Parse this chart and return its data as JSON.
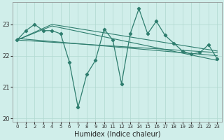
{
  "xlabel": "Humidex (Indice chaleur)",
  "bg_color": "#d0eeea",
  "grid_color": "#b0d8d0",
  "line_color": "#2e7d6e",
  "x_main": [
    0,
    1,
    2,
    3,
    4,
    5,
    6,
    7,
    8,
    9,
    10,
    11,
    12,
    13,
    14,
    15,
    16,
    17,
    18,
    19,
    20,
    21,
    22,
    23
  ],
  "y_main": [
    22.5,
    22.8,
    23.0,
    22.8,
    22.8,
    22.7,
    21.8,
    20.35,
    21.4,
    21.85,
    22.85,
    22.5,
    21.1,
    22.7,
    23.5,
    22.7,
    23.1,
    22.65,
    22.4,
    22.15,
    22.05,
    22.1,
    22.35,
    21.9
  ],
  "trend_lines": [
    {
      "x": [
        0,
        23
      ],
      "y": [
        22.5,
        22.1
      ]
    },
    {
      "x": [
        0,
        23
      ],
      "y": [
        22.55,
        22.0
      ]
    },
    {
      "x": [
        0,
        4,
        23
      ],
      "y": [
        22.5,
        23.0,
        22.15
      ]
    },
    {
      "x": [
        0,
        4,
        23
      ],
      "y": [
        22.5,
        22.95,
        21.85
      ]
    }
  ],
  "ylim": [
    19.9,
    23.7
  ],
  "xlim": [
    -0.5,
    23.5
  ],
  "yticks": [
    20,
    21,
    22,
    23
  ],
  "xticks": [
    0,
    1,
    2,
    3,
    4,
    5,
    6,
    7,
    8,
    9,
    10,
    11,
    12,
    13,
    14,
    15,
    16,
    17,
    18,
    19,
    20,
    21,
    22,
    23
  ]
}
